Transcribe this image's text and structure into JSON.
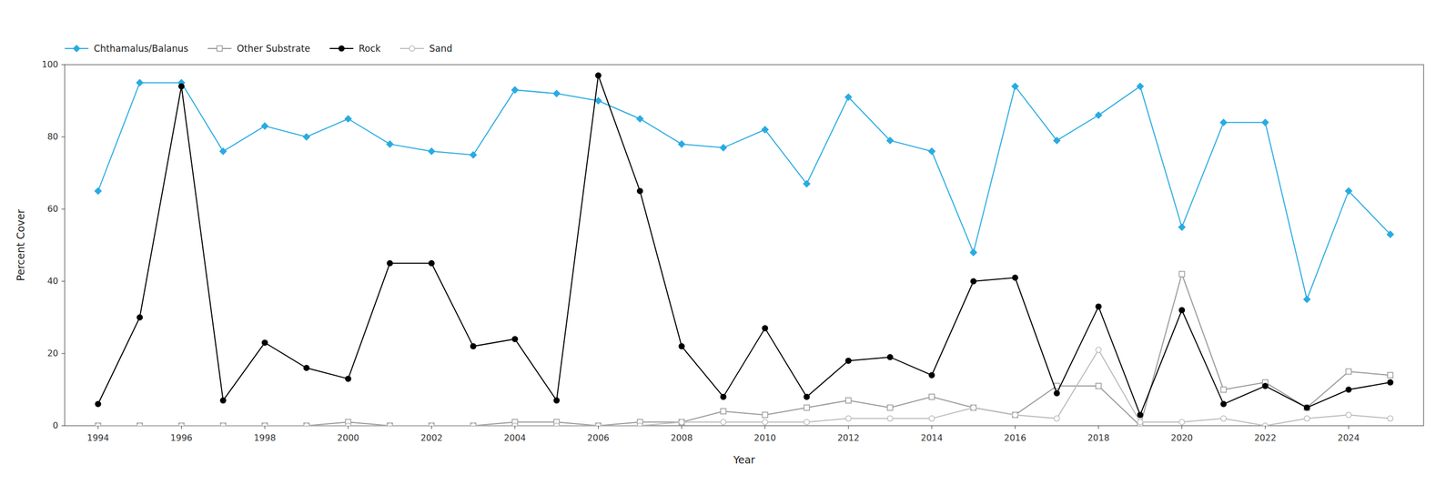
{
  "chart_data": {
    "type": "line",
    "xlabel": "Year",
    "ylabel": "Percent Cover",
    "x": [
      1994,
      1995,
      1996,
      1997,
      1998,
      1999,
      2000,
      2001,
      2002,
      2003,
      2004,
      2005,
      2006,
      2007,
      2008,
      2009,
      2010,
      2011,
      2012,
      2013,
      2014,
      2015,
      2016,
      2017,
      2018,
      2019,
      2020,
      2021,
      2022,
      2023,
      2024,
      2025
    ],
    "series": [
      {
        "name": "Chthamalus/Balanus",
        "color": "#29ABE2",
        "marker": "diamond",
        "values": [
          65,
          95,
          95,
          76,
          83,
          80,
          85,
          78,
          76,
          75,
          93,
          92,
          90,
          85,
          78,
          77,
          82,
          67,
          91,
          79,
          76,
          48,
          94,
          79,
          86,
          94,
          55,
          84,
          84,
          35,
          65,
          53
        ]
      },
      {
        "name": "Other Substrate",
        "color": "#999999",
        "marker": "square-open",
        "values": [
          0,
          0,
          0,
          0,
          0,
          0,
          1,
          0,
          0,
          0,
          1,
          1,
          0,
          1,
          1,
          4,
          3,
          5,
          7,
          5,
          8,
          5,
          3,
          11,
          11,
          0,
          42,
          10,
          12,
          5,
          15,
          14
        ]
      },
      {
        "name": "Rock",
        "color": "#000000",
        "marker": "circle",
        "values": [
          6,
          30,
          94,
          7,
          23,
          16,
          13,
          45,
          45,
          22,
          24,
          7,
          97,
          65,
          22,
          8,
          27,
          8,
          18,
          19,
          14,
          40,
          41,
          9,
          33,
          3,
          32,
          6,
          11,
          5,
          10,
          12
        ]
      },
      {
        "name": "Sand",
        "color": "#BBBBBB",
        "marker": "circle-open",
        "values": [
          0,
          0,
          0,
          0,
          0,
          0,
          0,
          0,
          0,
          0,
          0,
          0,
          0,
          0,
          1,
          1,
          1,
          1,
          2,
          2,
          2,
          5,
          3,
          2,
          21,
          1,
          1,
          2,
          0,
          2,
          3,
          2
        ]
      }
    ],
    "xlim": [
      1993.2,
      2025.8
    ],
    "xticks": [
      1994,
      1996,
      1998,
      2000,
      2002,
      2004,
      2006,
      2008,
      2010,
      2012,
      2014,
      2016,
      2018,
      2020,
      2022,
      2024
    ],
    "ylim": [
      0,
      100
    ],
    "yticks": [
      0,
      20,
      40,
      60,
      80,
      100
    ],
    "grid": false,
    "legend": "top"
  }
}
